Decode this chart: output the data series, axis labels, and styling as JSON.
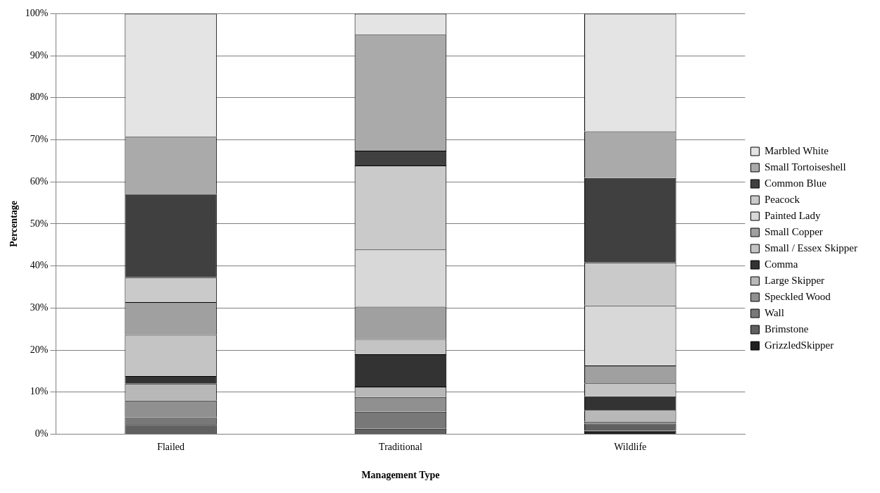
{
  "chart_data": {
    "type": "bar",
    "stacked": true,
    "xlabel": "Management Type",
    "ylabel": "Percentage",
    "categories": [
      "Flailed",
      "Traditional",
      "Wildlife"
    ],
    "series": [
      {
        "name": "GrizzledSkipper",
        "color": "#202020",
        "values": [
          0,
          0,
          0.8
        ]
      },
      {
        "name": "Brimstone",
        "color": "#606060",
        "values": [
          2.2,
          1.3,
          1.7
        ]
      },
      {
        "name": "Wall",
        "color": "#787878",
        "values": [
          1.8,
          4.0,
          0.5
        ]
      },
      {
        "name": "Speckled Wood",
        "color": "#909090",
        "values": [
          4.0,
          3.5,
          0
        ]
      },
      {
        "name": "Large Skipper",
        "color": "#b8b8b8",
        "values": [
          4.0,
          2.5,
          2.7
        ]
      },
      {
        "name": "Comma",
        "color": "#333333",
        "values": [
          1.8,
          7.7,
          3.3
        ]
      },
      {
        "name": "Small / Essex Skipper",
        "color": "#c4c4c4",
        "values": [
          9.8,
          3.6,
          3.1
        ]
      },
      {
        "name": "Small Copper",
        "color": "#a0a0a0",
        "values": [
          7.8,
          7.7,
          4.2
        ]
      },
      {
        "name": "Painted Lady",
        "color": "#d8d8d8",
        "values": [
          0,
          13.6,
          14.3
        ]
      },
      {
        "name": "Peacock",
        "color": "#cacaca",
        "values": [
          5.9,
          20.0,
          10.2
        ]
      },
      {
        "name": "Common Blue",
        "color": "#404040",
        "values": [
          19.8,
          3.5,
          20.1
        ]
      },
      {
        "name": "Small Tortoiseshell",
        "color": "#aaaaaa",
        "values": [
          13.6,
          27.6,
          11.1
        ]
      },
      {
        "name": "Marbled White",
        "color": "#e4e4e4",
        "values": [
          29.3,
          5.0,
          28.0
        ]
      }
    ],
    "ylim": [
      0,
      100
    ],
    "yticks": [
      {
        "value": 0,
        "label": "0%"
      },
      {
        "value": 10,
        "label": "10%"
      },
      {
        "value": 20,
        "label": "20%"
      },
      {
        "value": 30,
        "label": "30%"
      },
      {
        "value": 40,
        "label": "40%"
      },
      {
        "value": 50,
        "label": "50%"
      },
      {
        "value": 60,
        "label": "60%"
      },
      {
        "value": 70,
        "label": "70%"
      },
      {
        "value": 80,
        "label": "80%"
      },
      {
        "value": 90,
        "label": "90%"
      },
      {
        "value": 100,
        "label": "100%"
      }
    ],
    "grid": "y",
    "legend": "right"
  }
}
